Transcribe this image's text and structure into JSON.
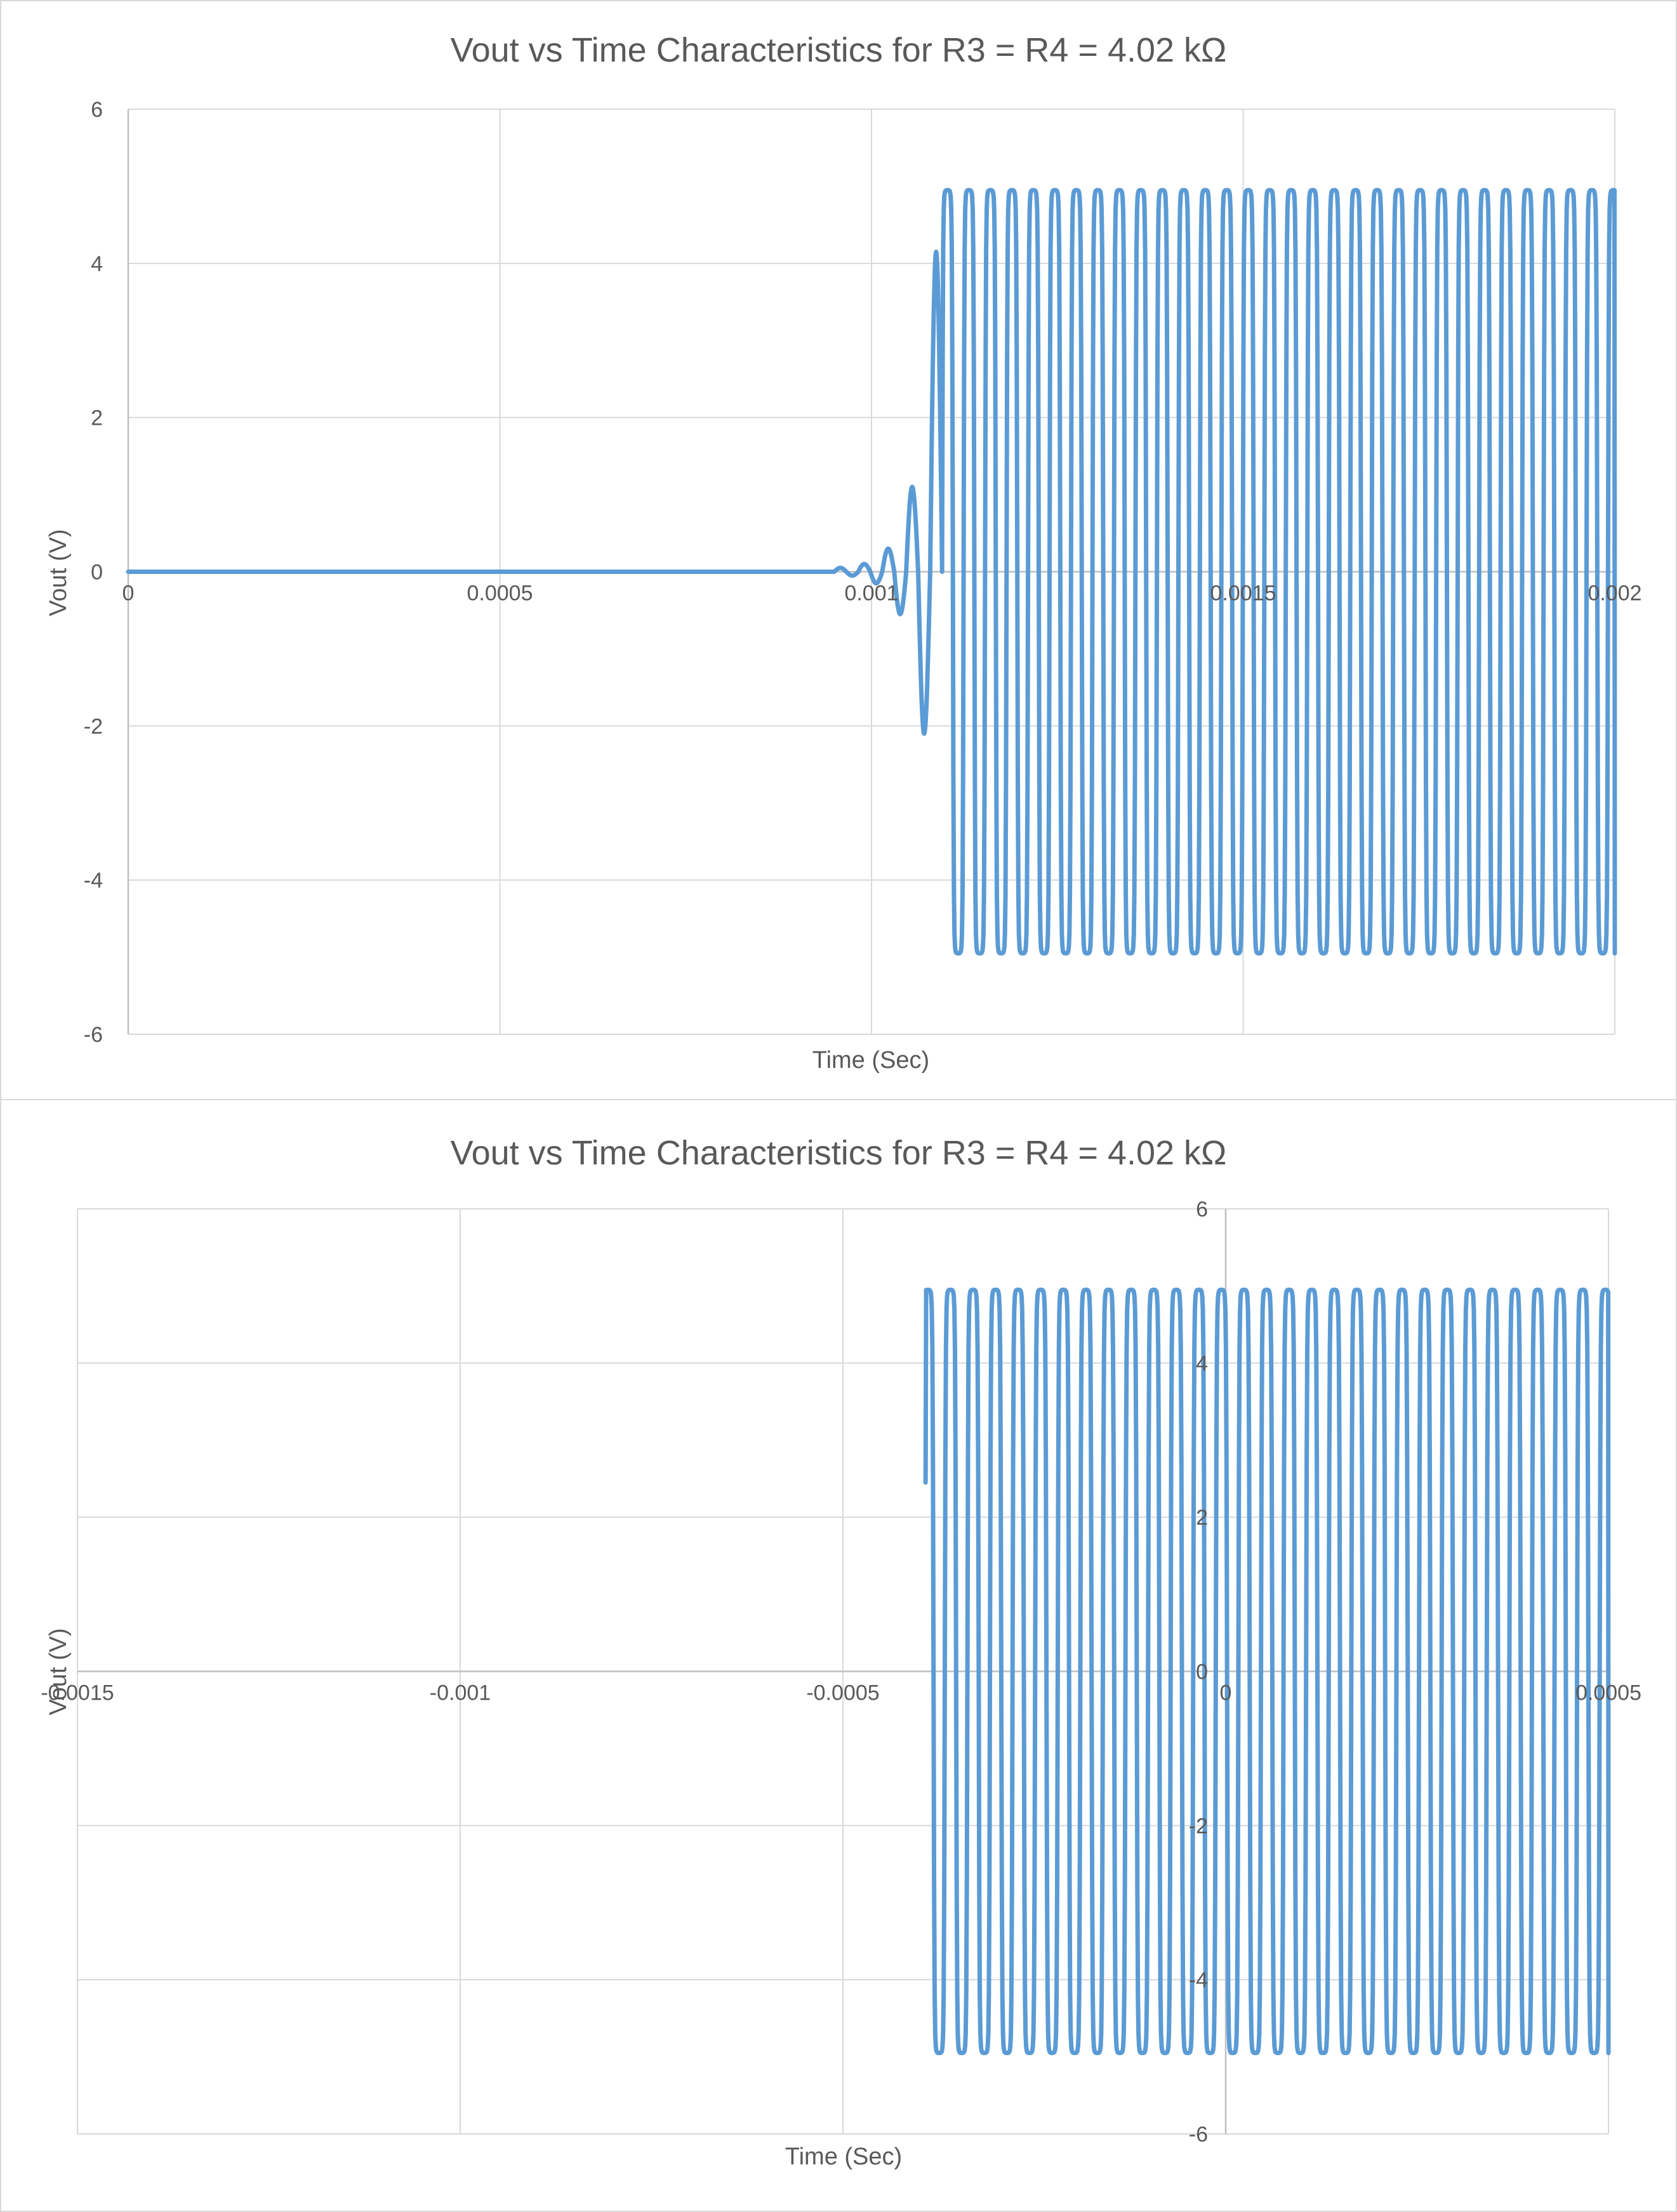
{
  "colors": {
    "series": "#5b9bd5",
    "grid": "#d9d9d9",
    "text": "#595959",
    "background": "#ffffff"
  },
  "chart_data": [
    {
      "type": "line",
      "title": "Vout vs Time Characteristics for R3 = R4 = 4.02 kΩ",
      "xlabel": "Time (Sec)",
      "ylabel": "Vout (V)",
      "xlim": [
        0,
        0.002
      ],
      "ylim": [
        -6,
        6
      ],
      "x_ticks": [
        "0",
        "0.0005",
        "0.001",
        "0.0015",
        "0.002"
      ],
      "y_ticks": [
        "6",
        "4",
        "2",
        "0",
        "-2",
        "-4",
        "-6"
      ],
      "grid": true,
      "legend": "none",
      "series": [
        {
          "description_points": {
            "steady_amplitude_V": 4.95,
            "oscillation_period_s": 2.89e-05,
            "startup_onset_s": 0.00095,
            "startup_peaks_V": [
              0.05,
              -0.05,
              0.1,
              -0.15,
              0.3,
              -0.55,
              1.1,
              -2.1,
              4.15
            ],
            "saturation_start_s": 0.001095,
            "end_time_s": 0.002
          }
        }
      ]
    },
    {
      "type": "line",
      "title": "Vout vs Time Characteristics for R3 = R4 = 4.02 kΩ",
      "xlabel": "Time (Sec)",
      "ylabel": "Vout (V)",
      "xlim": [
        -0.0015,
        0.0005
      ],
      "ylim": [
        -6,
        6
      ],
      "x_ticks": [
        "-0.0015",
        "-0.001",
        "-0.0005",
        "0",
        "0.0005"
      ],
      "y_ticks": [
        "6",
        "4",
        "2",
        "0",
        "-2",
        "-4",
        "-6"
      ],
      "grid": true,
      "legend": "none",
      "series": [
        {
          "description_points": {
            "steady_amplitude_V": 4.95,
            "oscillation_period_s": 2.95e-05,
            "start_time_s": -0.000392,
            "start_value_V": 2.45,
            "end_time_s": 0.0005
          }
        }
      ]
    }
  ]
}
